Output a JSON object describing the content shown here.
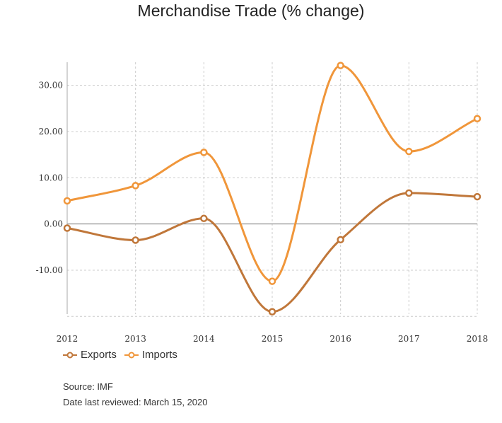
{
  "chart_data": {
    "type": "line",
    "title": "Merchandise Trade (% change)",
    "categories": [
      "2012",
      "2013",
      "2014",
      "2015",
      "2016",
      "2017",
      "2018"
    ],
    "series": [
      {
        "name": "Exports",
        "color": "#c0773a",
        "values": [
          -0.9,
          -3.5,
          1.2,
          -19.0,
          -3.4,
          6.7,
          5.9
        ]
      },
      {
        "name": "Imports",
        "color": "#f0963a",
        "values": [
          5.0,
          8.3,
          15.5,
          -12.4,
          34.3,
          15.7,
          22.8
        ]
      }
    ],
    "yticks": [
      {
        "value": 30,
        "label": "30.00"
      },
      {
        "value": 20,
        "label": "20.00"
      },
      {
        "value": 10,
        "label": "10.00"
      },
      {
        "value": 0,
        "label": "0.00"
      },
      {
        "value": -10,
        "label": "-10.00"
      }
    ],
    "ylim": [
      -19.5,
      35
    ],
    "grid": true,
    "legend_position": "bottom-left"
  },
  "footer": {
    "source": "Source: IMF",
    "reviewed": "Date last reviewed: March 15, 2020"
  }
}
